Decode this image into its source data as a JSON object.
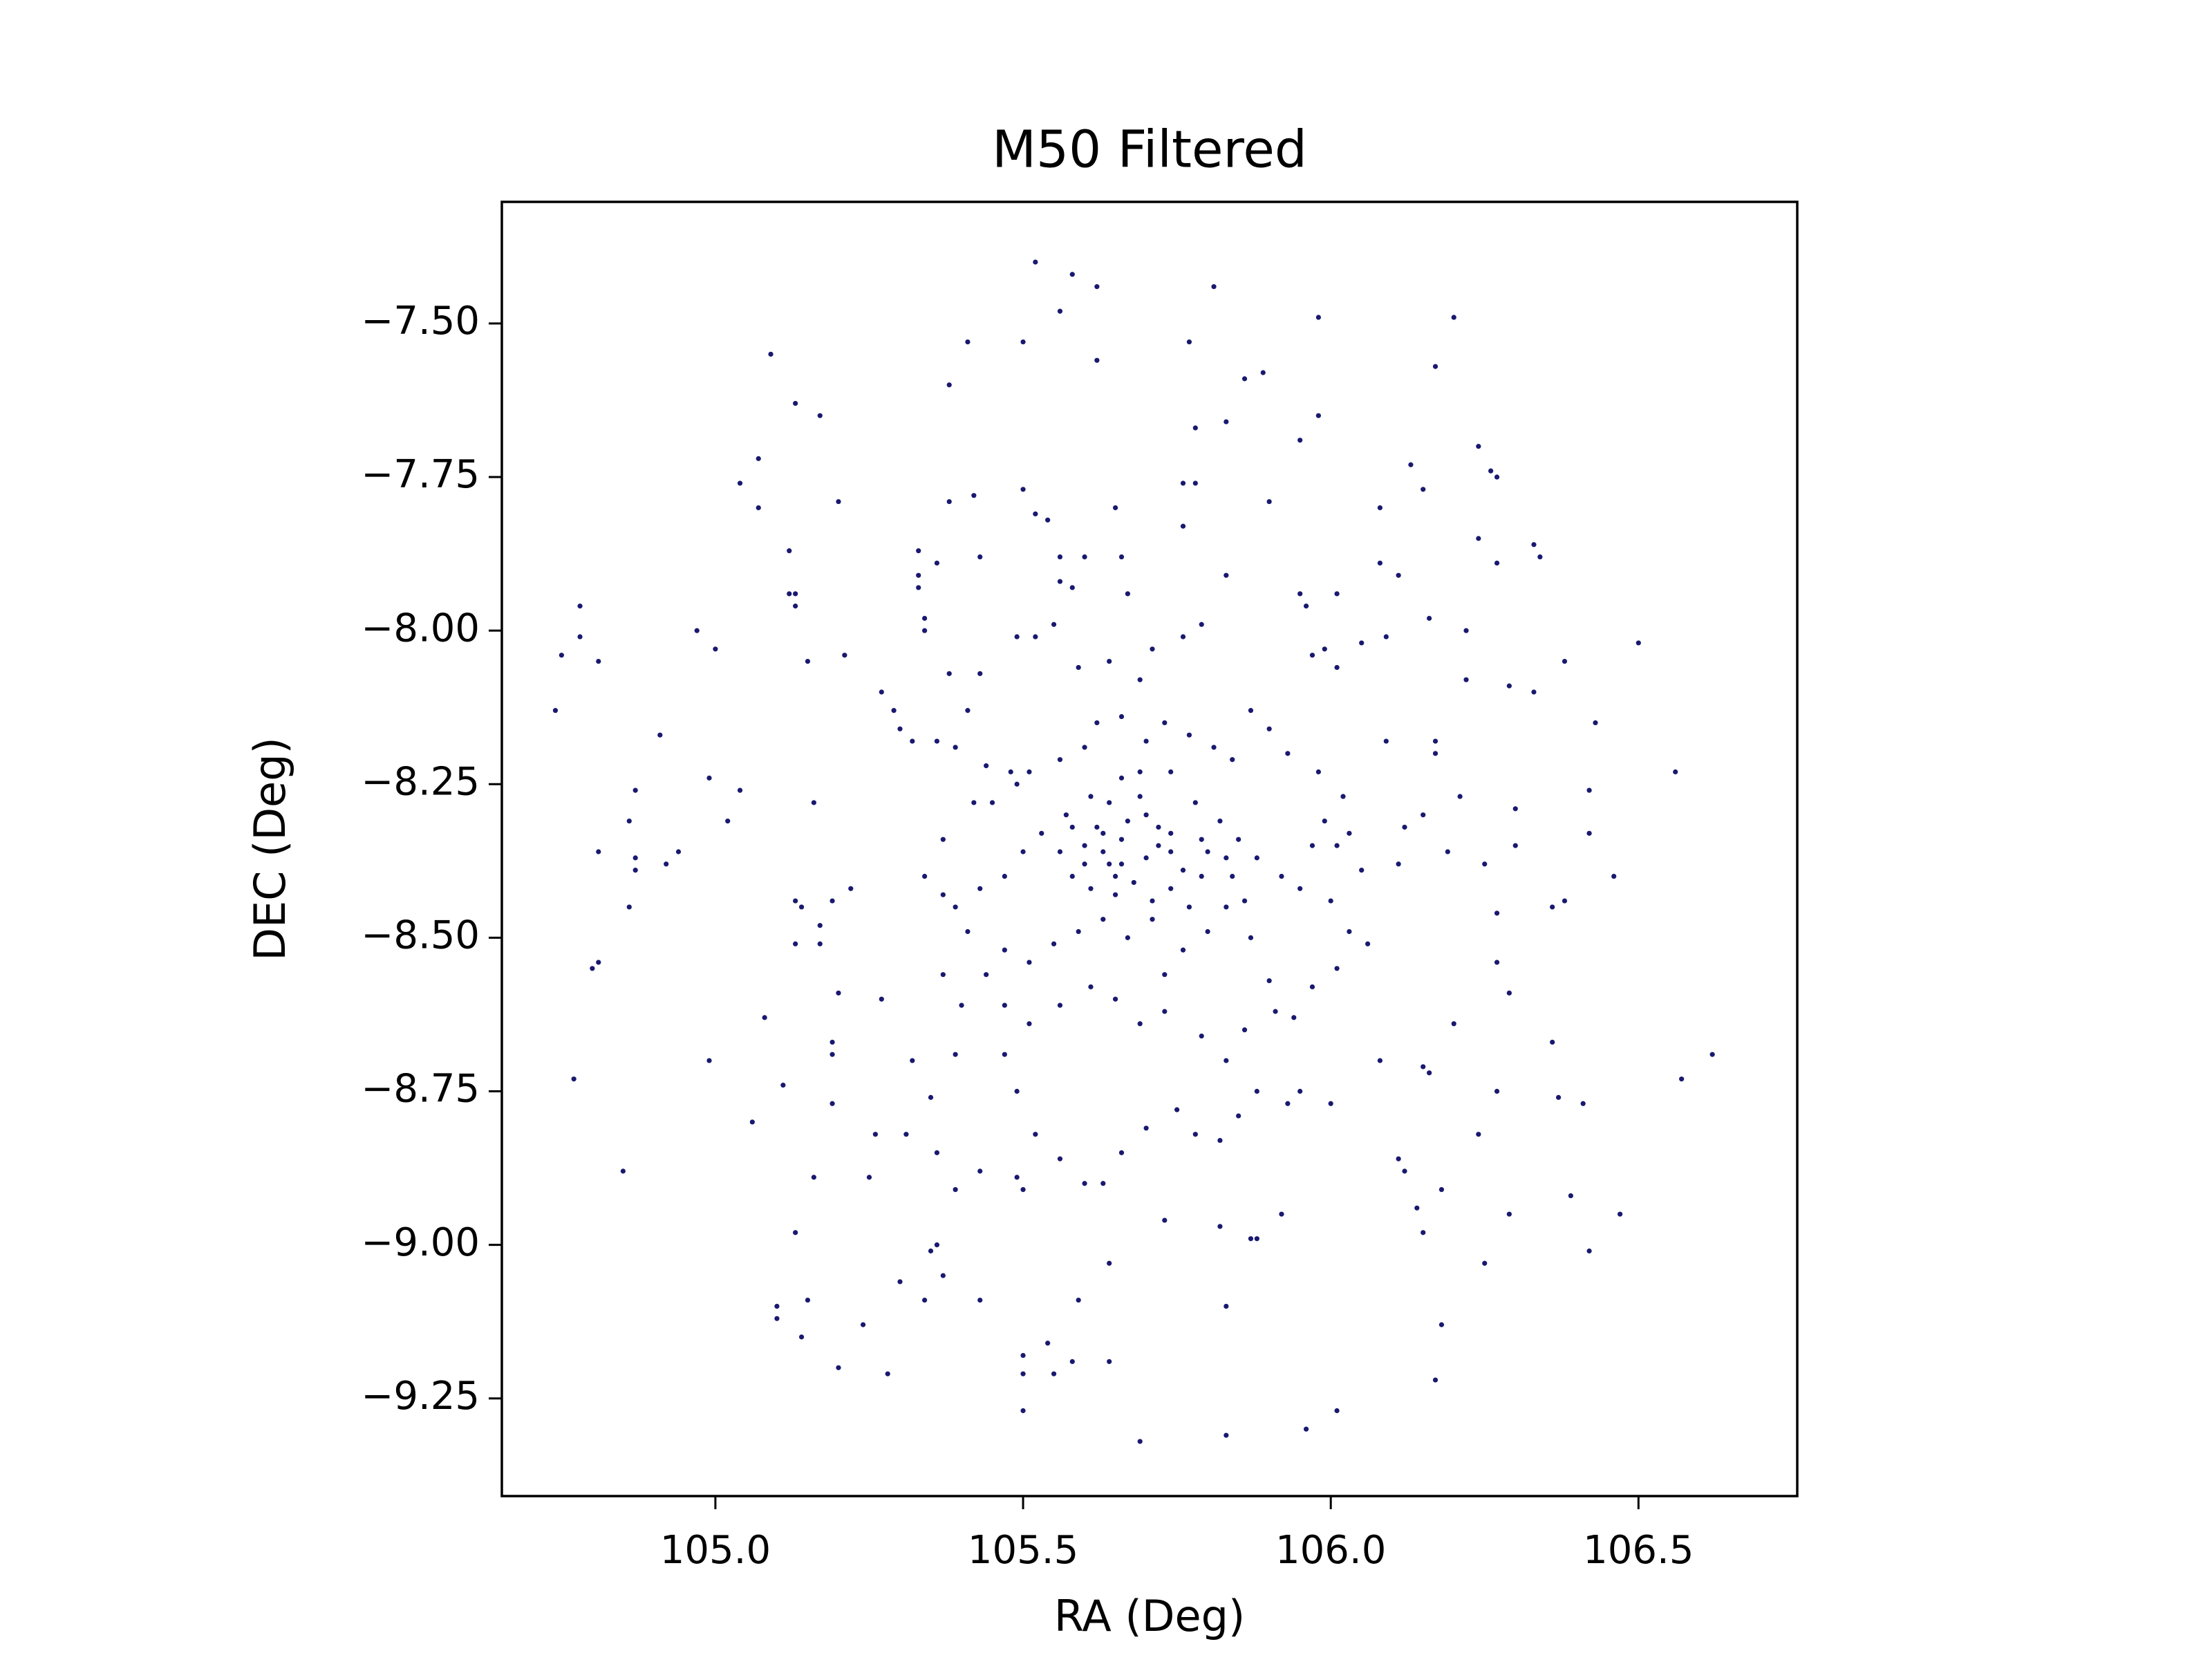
{
  "chart_data": {
    "type": "scatter",
    "title": "M50 Filtered",
    "xlabel": "RA (Deg)",
    "ylabel": "DEC (Deg)",
    "color": "#191970",
    "xlim": [
      104.653,
      106.758
    ],
    "ylim": [
      -9.409,
      -7.302
    ],
    "xticks": [
      {
        "value": 105,
        "label": "105.0"
      },
      105.5,
      {
        "value": 106,
        "label": "106.0"
      },
      106.5
    ],
    "yticks": [
      {
        "value": -7.5,
        "label": "−7.50"
      },
      {
        "value": -7.75,
        "label": "−7.75"
      },
      {
        "value": -8,
        "label": "−8.00"
      },
      {
        "value": -8.25,
        "label": "−8.25"
      },
      {
        "value": -8.5,
        "label": "−8.50"
      },
      {
        "value": -8.75,
        "label": "−8.75"
      },
      {
        "value": -9,
        "label": "−9.00"
      },
      {
        "value": -9.25,
        "label": "−9.25"
      }
    ],
    "x": [
      105.52,
      105.58,
      105.62,
      105.81,
      105.56,
      105.98,
      106.2,
      105.09,
      105.5,
      105.41,
      105.62,
      105.77,
      105.38,
      106.17,
      105.13,
      105.17,
      105.86,
      105.89,
      105.98,
      105.95,
      105.83,
      105.78,
      106.24,
      105.07,
      105.76,
      105.78,
      105.5,
      106.13,
      106.26,
      106.27,
      105.04,
      105.42,
      106.15,
      105.07,
      105.2,
      105.38,
      105.52,
      105.54,
      105.65,
      105.9,
      106.08,
      106.24,
      105.76,
      105.12,
      105.33,
      105.43,
      105.56,
      105.6,
      105.66,
      106.33,
      106.34,
      106.27,
      106.08,
      106.11,
      105.33,
      105.36,
      105.12,
      105.13,
      105.13,
      105.33,
      105.56,
      105.58,
      105.67,
      105.83,
      105.95,
      105.96,
      104.78,
      106.01,
      106.16,
      106.22,
      104.97,
      104.75,
      104.78,
      104.81,
      105.0,
      104.74,
      106.5,
      106.38,
      106.43,
      106.33,
      106.29,
      106.22,
      104.91,
      104.87,
      104.99,
      105.04,
      105.02,
      104.86,
      104.81,
      104.87,
      104.87,
      104.92,
      104.94,
      104.86,
      104.8,
      104.81,
      104.77,
      104.85,
      104.99,
      105.08,
      105.06,
      105.11,
      105.13,
      105.15,
      105.21,
      105.16,
      105.13,
      105.14,
      105.13,
      105.17,
      105.17,
      105.19,
      105.22,
      105.2,
      105.19,
      105.19,
      105.19,
      105.27,
      105.26,
      105.25,
      105.16,
      105.1,
      105.1,
      105.15,
      105.14,
      105.2,
      105.24,
      105.28,
      105.3,
      105.34,
      105.36,
      105.35,
      105.37,
      105.43,
      105.5,
      105.5,
      105.5,
      105.54,
      105.55,
      105.58,
      105.64,
      105.59,
      105.64,
      105.69,
      105.83,
      105.96,
      106.01,
      105.83,
      105.92,
      105.88,
      105.87,
      105.82,
      105.73,
      106.17,
      106.18,
      106.25,
      106.29,
      106.39,
      106.47,
      106.42,
      106.18,
      106.14,
      106.15,
      106.11,
      106.12,
      106.24,
      106.08,
      106.15,
      106.16,
      106.2,
      106.27,
      106.37,
      106.41,
      106.36,
      106.57,
      106.62,
      106.29,
      106.27,
      106.27,
      106.36,
      106.38,
      106.46,
      106.42,
      106.42,
      106.56,
      106.3,
      106.3,
      106.25,
      106.19,
      106.21,
      106.17,
      106.11,
      106.12,
      106.09,
      106.17,
      106.15,
      106.09,
      106.05,
      106.01,
      105.99,
      105.97,
      105.64,
      105.69,
      105.71,
      105.76,
      105.79,
      105.59,
      105.55,
      105.52,
      105.49,
      105.43,
      105.41,
      105.38,
      105.34,
      105.34,
      105.27,
      105.29,
      105.3,
      105.32,
      105.36,
      105.39,
      105.44,
      105.48,
      105.51,
      105.56,
      105.6,
      105.62,
      105.66,
      105.7,
      105.73,
      105.77,
      105.81,
      105.84,
      105.87,
      105.9,
      105.93,
      105.98,
      106.02,
      105.99,
      105.97,
      106.01,
      106.03,
      106.05,
      105.95,
      105.92,
      105.88,
      105.85,
      105.82,
      105.78,
      105.74,
      105.72,
      105.67,
      105.64,
      105.61,
      105.57,
      105.53,
      105.5,
      105.47,
      105.43,
      105.39,
      105.37,
      105.34,
      105.37,
      105.42,
      105.45,
      105.49,
      105.58,
      105.61,
      105.65,
      105.7,
      105.74,
      105.79,
      105.83,
      105.86,
      105.8,
      105.76,
      105.73,
      105.67,
      105.63,
      105.59,
      105.55,
      105.51,
      105.47,
      105.44,
      105.41,
      105.37,
      105.4,
      105.47,
      105.51,
      105.56,
      105.61,
      105.65,
      105.69,
      105.73,
      105.79,
      105.83,
      105.86,
      105.91,
      105.94,
      105.97,
      106.01,
      106.03,
      106.06,
      106.0,
      105.87,
      105.9,
      105.66,
      105.69,
      105.74,
      105.56,
      105.6,
      105.63,
      105.66,
      105.71,
      105.63,
      105.79,
      105.84,
      105.47,
      105.49,
      105.52,
      105.56,
      105.6,
      105.63,
      105.66,
      105.7,
      105.75,
      105.78,
      105.82,
      105.85,
      105.88,
      105.93,
      105.95,
      106.0,
      105.39,
      105.35,
      105.32,
      105.31,
      105.36,
      105.39,
      105.43,
      105.49,
      105.5,
      105.62,
      105.66,
      105.7,
      105.74,
      105.76,
      105.68,
      105.64,
      105.72,
      105.8,
      105.6,
      105.69,
      105.65,
      105.77,
      105.83,
      105.58,
      105.71
    ],
    "values": [
      -7.4,
      -7.42,
      -7.44,
      -7.44,
      -7.48,
      -7.49,
      -7.49,
      -7.55,
      -7.53,
      -7.53,
      -7.56,
      -7.53,
      -7.6,
      -7.57,
      -7.63,
      -7.65,
      -7.59,
      -7.58,
      -7.65,
      -7.69,
      -7.66,
      -7.67,
      -7.7,
      -7.72,
      -7.76,
      -7.76,
      -7.77,
      -7.73,
      -7.74,
      -7.75,
      -7.76,
      -7.78,
      -7.77,
      -7.8,
      -7.79,
      -7.79,
      -7.81,
      -7.82,
      -7.8,
      -7.79,
      -7.8,
      -7.85,
      -7.83,
      -7.87,
      -7.87,
      -7.88,
      -7.88,
      -7.88,
      -7.88,
      -7.86,
      -7.88,
      -7.89,
      -7.89,
      -7.91,
      -7.91,
      -7.89,
      -7.94,
      -7.94,
      -7.96,
      -7.93,
      -7.92,
      -7.93,
      -7.94,
      -7.91,
      -7.94,
      -7.96,
      -7.96,
      -7.94,
      -7.98,
      -8.0,
      -8.0,
      -8.04,
      -8.01,
      -8.05,
      -8.03,
      -8.13,
      -8.02,
      -8.05,
      -8.15,
      -8.1,
      -8.09,
      -8.08,
      -8.17,
      -8.26,
      -8.24,
      -8.26,
      -8.31,
      -8.31,
      -8.36,
      -8.37,
      -8.39,
      -8.38,
      -8.36,
      -8.45,
      -8.55,
      -8.54,
      -8.73,
      -8.88,
      -8.7,
      -8.63,
      -8.8,
      -8.74,
      -8.98,
      -8.05,
      -8.04,
      -8.28,
      -8.44,
      -8.45,
      -8.51,
      -8.48,
      -8.51,
      -8.44,
      -8.42,
      -8.59,
      -8.67,
      -8.69,
      -8.77,
      -8.6,
      -8.82,
      -8.89,
      -8.89,
      -9.1,
      -9.12,
      -9.09,
      -9.15,
      -9.2,
      -9.13,
      -9.21,
      -9.06,
      -9.09,
      -9.0,
      -9.01,
      -9.05,
      -9.09,
      -9.18,
      -9.21,
      -9.27,
      -9.16,
      -9.21,
      -9.19,
      -9.03,
      -9.09,
      -9.19,
      -9.32,
      -9.31,
      -9.3,
      -9.27,
      -9.1,
      -8.95,
      -8.99,
      -8.99,
      -8.97,
      -8.96,
      -9.22,
      -9.13,
      -9.03,
      -8.95,
      -8.92,
      -8.95,
      -9.01,
      -8.91,
      -8.94,
      -8.98,
      -8.86,
      -8.88,
      -8.82,
      -8.7,
      -8.71,
      -8.72,
      -8.64,
      -8.75,
      -8.76,
      -8.77,
      -8.67,
      -8.73,
      -8.69,
      -8.59,
      -8.54,
      -8.46,
      -8.45,
      -8.44,
      -8.4,
      -8.33,
      -8.26,
      -8.23,
      -8.29,
      -8.35,
      -8.38,
      -8.36,
      -8.27,
      -8.18,
      -8.38,
      -8.32,
      -8.18,
      -8.2,
      -8.3,
      -8.01,
      -8.02,
      -8.06,
      -8.03,
      -8.04,
      -8.05,
      -8.08,
      -8.03,
      -8.01,
      -7.99,
      -8.06,
      -7.99,
      -8.01,
      -8.01,
      -8.07,
      -8.13,
      -8.07,
      -8.0,
      -7.98,
      -8.1,
      -8.13,
      -8.16,
      -8.18,
      -8.18,
      -8.19,
      -8.22,
      -8.23,
      -8.23,
      -8.21,
      -8.19,
      -8.15,
      -8.14,
      -8.18,
      -8.15,
      -8.17,
      -8.19,
      -8.21,
      -8.13,
      -8.16,
      -8.2,
      -8.23,
      -8.27,
      -8.31,
      -8.35,
      -8.35,
      -8.33,
      -8.39,
      -8.42,
      -8.4,
      -8.37,
      -8.34,
      -8.31,
      -8.28,
      -8.33,
      -8.35,
      -8.31,
      -8.28,
      -8.27,
      -8.3,
      -8.33,
      -8.36,
      -8.4,
      -8.42,
      -8.45,
      -8.43,
      -8.4,
      -8.34,
      -8.28,
      -8.28,
      -8.25,
      -8.4,
      -8.42,
      -8.4,
      -8.37,
      -8.42,
      -8.4,
      -8.45,
      -8.44,
      -8.49,
      -8.52,
      -8.56,
      -8.5,
      -8.47,
      -8.49,
      -8.51,
      -8.54,
      -8.52,
      -8.56,
      -8.49,
      -8.56,
      -8.61,
      -8.61,
      -8.64,
      -8.61,
      -8.58,
      -8.6,
      -8.64,
      -8.62,
      -8.66,
      -8.7,
      -8.65,
      -8.62,
      -8.63,
      -8.58,
      -8.55,
      -8.49,
      -8.51,
      -8.44,
      -8.5,
      -8.57,
      -8.24,
      -8.23,
      -8.23,
      -8.36,
      -8.35,
      -8.36,
      -8.38,
      -8.44,
      -8.33,
      -8.34,
      -8.4,
      -8.69,
      -8.75,
      -8.82,
      -8.86,
      -8.9,
      -8.9,
      -8.85,
      -8.81,
      -8.78,
      -8.82,
      -8.83,
      -8.79,
      -8.75,
      -8.77,
      -8.75,
      -8.77,
      -8.69,
      -8.76,
      -8.7,
      -8.82,
      -8.85,
      -8.91,
      -8.88,
      -8.89,
      -8.91,
      -8.32,
      -8.34,
      -8.3,
      -8.36,
      -8.39,
      -8.41,
      -8.38,
      -8.32,
      -8.36,
      -8.38,
      -8.27,
      -8.43,
      -8.45,
      -8.37,
      -8.32,
      -8.47
    ]
  }
}
